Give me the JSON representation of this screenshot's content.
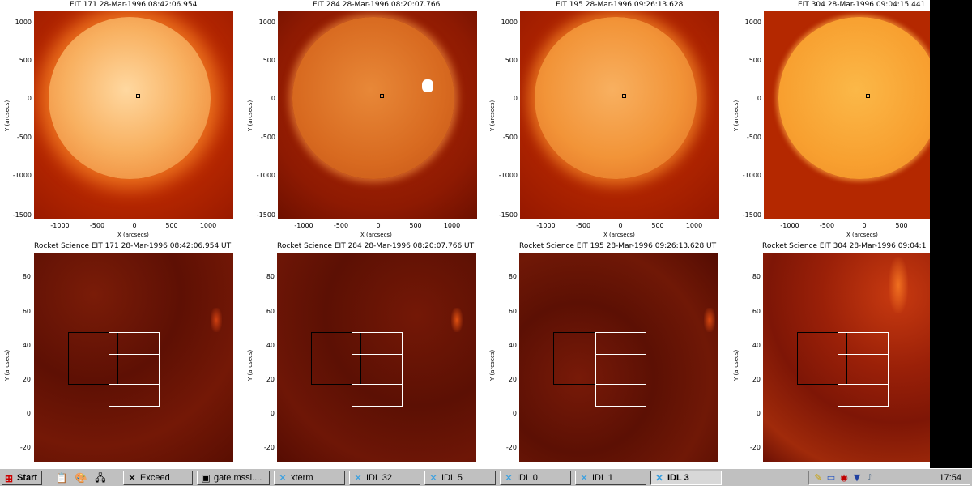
{
  "panels_top": [
    {
      "title": "EIT 171  28-Mar-1996  08:42:06.954",
      "xlabel": "X (arcsecs)",
      "ylabel": "Y (arcsecs)"
    },
    {
      "title": "EIT 284  28-Mar-1996  08:20:07.766",
      "xlabel": "X (arcsecs)",
      "ylabel": "Y (arcsecs)"
    },
    {
      "title": "EIT 195  28-Mar-1996  09:26:13.628",
      "xlabel": "X (arcsecs)",
      "ylabel": "Y (arcsecs)"
    },
    {
      "title": "EIT 304  28-Mar-1996  09:04:15.441",
      "xlabel": "X (arcsecs)",
      "ylabel": "Y (arcsecs)"
    }
  ],
  "panels_bottom": [
    {
      "title": "Rocket Science EIT 171  28-Mar-1996  08:42:06.954 UT",
      "ylabel": "Y (arcsecs)"
    },
    {
      "title": "Rocket Science EIT 284  28-Mar-1996  08:20:07.766 UT",
      "ylabel": "Y (arcsecs)"
    },
    {
      "title": "Rocket Science EIT 195  28-Mar-1996  09:26:13.628 UT",
      "ylabel": "Y (arcsecs)"
    },
    {
      "title": "Rocket Science EIT 304  28-Mar-1996  09:04:1",
      "ylabel": "Y (arcsecs)"
    }
  ],
  "top_y_ticks": [
    "1000",
    "500",
    "0",
    "-500",
    "-1000",
    "-1500"
  ],
  "top_x_ticks": [
    "-1000",
    "-500",
    "0",
    "500",
    "1000"
  ],
  "bottom_y_ticks": [
    "80",
    "60",
    "40",
    "20",
    "0",
    "-20"
  ],
  "colors": {
    "sun_171": "#f4a040",
    "sun_284": "#d86a20",
    "sun_195": "#f09030",
    "sun_304": "#f7a030",
    "background_red": "#b02000",
    "zoom_dark": "#6a1406"
  },
  "taskbar": {
    "start_label": "Start",
    "buttons": [
      {
        "label": "Exceed",
        "icon": "exceed-icon"
      },
      {
        "label": "gate.mssl....",
        "icon": "terminal-icon"
      },
      {
        "label": "xterm",
        "icon": "x-icon"
      },
      {
        "label": "IDL 32",
        "icon": "x-icon"
      },
      {
        "label": "IDL 5",
        "icon": "x-icon"
      },
      {
        "label": "IDL 0",
        "icon": "x-icon"
      },
      {
        "label": "IDL 1",
        "icon": "x-icon"
      },
      {
        "label": "IDL 3",
        "icon": "x-icon",
        "active": true
      }
    ],
    "clock": "17:54"
  }
}
